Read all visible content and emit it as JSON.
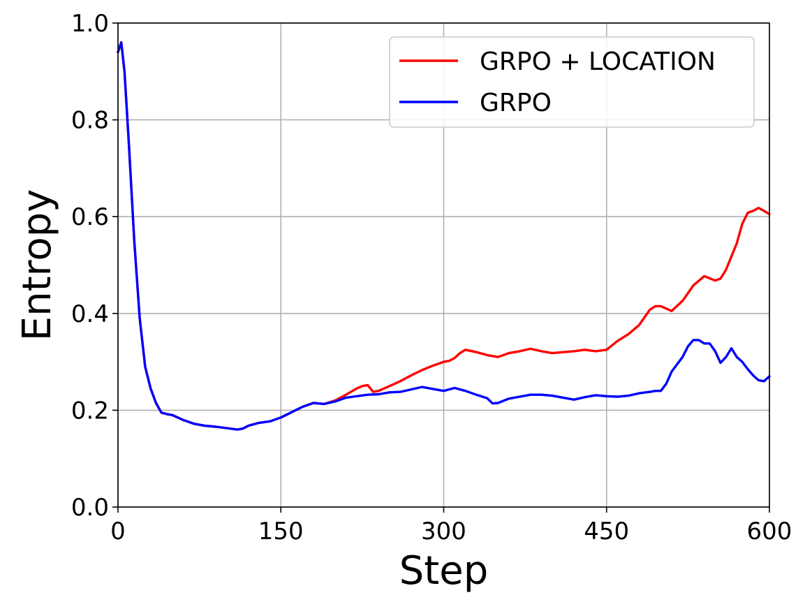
{
  "chart_data": {
    "type": "line",
    "title": "",
    "xlabel": "Step",
    "ylabel": "Entropy",
    "xlim": [
      0,
      600
    ],
    "ylim": [
      0,
      1.0
    ],
    "xticks": [
      0,
      150,
      300,
      450,
      600
    ],
    "yticks": [
      0.0,
      0.2,
      0.4,
      0.6,
      0.8,
      1.0
    ],
    "xtick_labels": [
      "0",
      "150",
      "300",
      "450",
      "600"
    ],
    "ytick_labels": [
      "0.0",
      "0.2",
      "0.4",
      "0.6",
      "0.8",
      "1.0"
    ],
    "grid": true,
    "legend_position": "top-right",
    "series": [
      {
        "name": "GRPO + LOCATION",
        "color": "#ff0000",
        "x": [
          0,
          3,
          6,
          10,
          15,
          20,
          25,
          30,
          35,
          40,
          45,
          50,
          60,
          70,
          80,
          90,
          100,
          110,
          115,
          120,
          130,
          140,
          150,
          160,
          170,
          180,
          190,
          200,
          210,
          220,
          225,
          230,
          235,
          240,
          250,
          260,
          270,
          280,
          290,
          300,
          305,
          310,
          315,
          320,
          330,
          340,
          350,
          360,
          370,
          380,
          390,
          400,
          410,
          420,
          430,
          440,
          450,
          460,
          470,
          480,
          490,
          495,
          500,
          510,
          520,
          530,
          540,
          550,
          555,
          560,
          570,
          575,
          580,
          585,
          590,
          595,
          600
        ],
        "y": [
          0.94,
          0.96,
          0.9,
          0.75,
          0.55,
          0.39,
          0.29,
          0.245,
          0.215,
          0.195,
          0.192,
          0.19,
          0.18,
          0.172,
          0.168,
          0.166,
          0.163,
          0.16,
          0.162,
          0.168,
          0.174,
          0.177,
          0.185,
          0.196,
          0.207,
          0.215,
          0.213,
          0.22,
          0.232,
          0.245,
          0.25,
          0.252,
          0.238,
          0.24,
          0.25,
          0.26,
          0.272,
          0.283,
          0.292,
          0.3,
          0.302,
          0.308,
          0.318,
          0.325,
          0.32,
          0.314,
          0.31,
          0.318,
          0.322,
          0.327,
          0.322,
          0.318,
          0.32,
          0.322,
          0.325,
          0.322,
          0.325,
          0.343,
          0.357,
          0.376,
          0.408,
          0.415,
          0.415,
          0.405,
          0.426,
          0.458,
          0.477,
          0.468,
          0.472,
          0.49,
          0.545,
          0.585,
          0.608,
          0.612,
          0.618,
          0.612,
          0.605
        ]
      },
      {
        "name": "GRPO",
        "color": "#0000ff",
        "x": [
          0,
          3,
          6,
          10,
          15,
          20,
          25,
          30,
          35,
          40,
          45,
          50,
          60,
          70,
          80,
          90,
          100,
          110,
          115,
          120,
          130,
          140,
          150,
          160,
          170,
          180,
          190,
          200,
          210,
          220,
          230,
          240,
          250,
          260,
          270,
          280,
          290,
          300,
          310,
          320,
          330,
          340,
          345,
          350,
          360,
          370,
          380,
          390,
          400,
          410,
          420,
          430,
          440,
          450,
          460,
          470,
          480,
          490,
          495,
          500,
          505,
          510,
          520,
          525,
          530,
          535,
          540,
          545,
          550,
          555,
          560,
          565,
          570,
          575,
          580,
          585,
          590,
          595,
          600
        ],
        "y": [
          0.94,
          0.96,
          0.9,
          0.75,
          0.55,
          0.39,
          0.29,
          0.245,
          0.215,
          0.195,
          0.192,
          0.19,
          0.18,
          0.172,
          0.168,
          0.166,
          0.163,
          0.16,
          0.162,
          0.168,
          0.174,
          0.177,
          0.185,
          0.196,
          0.207,
          0.215,
          0.213,
          0.218,
          0.226,
          0.229,
          0.232,
          0.233,
          0.237,
          0.238,
          0.243,
          0.248,
          0.244,
          0.24,
          0.246,
          0.24,
          0.232,
          0.225,
          0.214,
          0.215,
          0.224,
          0.228,
          0.232,
          0.232,
          0.23,
          0.226,
          0.222,
          0.227,
          0.231,
          0.229,
          0.228,
          0.23,
          0.235,
          0.238,
          0.24,
          0.24,
          0.255,
          0.28,
          0.31,
          0.332,
          0.345,
          0.345,
          0.338,
          0.338,
          0.322,
          0.298,
          0.31,
          0.328,
          0.31,
          0.3,
          0.285,
          0.272,
          0.262,
          0.26,
          0.27
        ]
      }
    ]
  }
}
